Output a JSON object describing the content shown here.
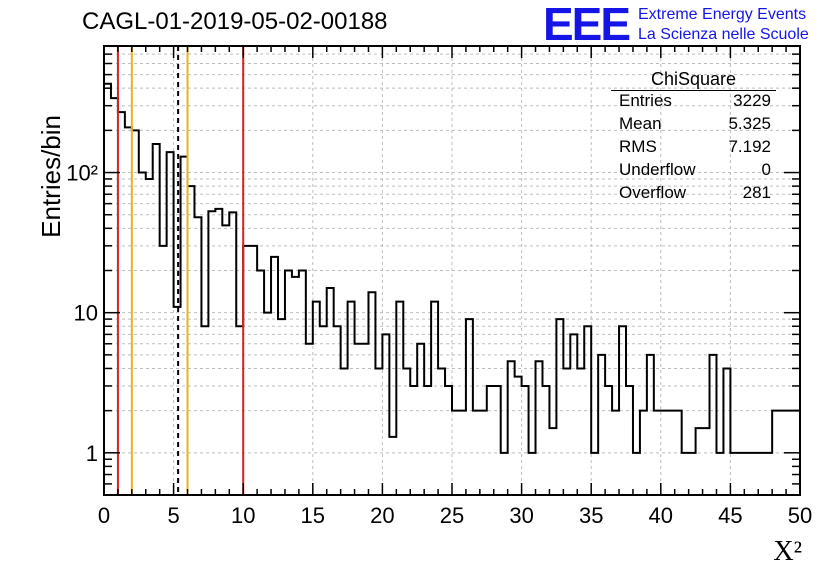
{
  "header": {
    "title": "CAGL-01-2019-05-02-00188"
  },
  "logo": {
    "mark": "EEE",
    "line1": "Extreme Energy Events",
    "line2": "La Scienza nelle Scuole",
    "color": "#1515e8"
  },
  "stats": {
    "title": "ChiSquare",
    "rows": [
      {
        "label": "Entries",
        "value": "3229"
      },
      {
        "label": "Mean",
        "value": "5.325"
      },
      {
        "label": "RMS",
        "value": "7.192"
      },
      {
        "label": "Underflow",
        "value": "0"
      },
      {
        "label": "Overflow",
        "value": "281"
      }
    ]
  },
  "chart_data": {
    "type": "histogram",
    "xlabel": "X²",
    "ylabel": "Entries/bin",
    "x_scale": "linear",
    "y_scale": "log",
    "xlim": [
      0,
      50
    ],
    "ylim": [
      0.5,
      800
    ],
    "bin_width": 0.5,
    "x_ticks": [
      "0",
      "5",
      "10",
      "15",
      "20",
      "25",
      "30",
      "35",
      "40",
      "45",
      "50"
    ],
    "y_ticks": [
      {
        "value": 1,
        "label": "1"
      },
      {
        "value": 10,
        "label": "10"
      },
      {
        "value": 100,
        "label": "10²"
      }
    ],
    "grid": true,
    "bin_contents": [
      430,
      340,
      270,
      210,
      200,
      100,
      90,
      160,
      30,
      140,
      11,
      130,
      80,
      48,
      8,
      53,
      55,
      42,
      52,
      8,
      30,
      30,
      20,
      10,
      25,
      9,
      20,
      18,
      20,
      6,
      12,
      8,
      15,
      8,
      4,
      12,
      6,
      6,
      14,
      4,
      7,
      1.3,
      12,
      4,
      3,
      6,
      3,
      12,
      4,
      3,
      2,
      2,
      9,
      2,
      2,
      3,
      3,
      1,
      4.5,
      3.5,
      3,
      1,
      4.5,
      3,
      1.5,
      9,
      4,
      7,
      4,
      8,
      1,
      5,
      3,
      2,
      8,
      3,
      1,
      2,
      5,
      2,
      2,
      2,
      2,
      1,
      1,
      1.5,
      1.5,
      5,
      1,
      4,
      1,
      1,
      1,
      1,
      1,
      1,
      2,
      2,
      2,
      2
    ],
    "reference_lines": [
      {
        "x": 1,
        "color": "#dc1f1f",
        "style": "solid"
      },
      {
        "x": 2,
        "color": "#e8b41c",
        "style": "solid"
      },
      {
        "x": 5.325,
        "color": "#000000",
        "style": "dashed"
      },
      {
        "x": 6,
        "color": "#e8b41c",
        "style": "solid"
      },
      {
        "x": 10,
        "color": "#dc1f1f",
        "style": "solid"
      }
    ]
  }
}
